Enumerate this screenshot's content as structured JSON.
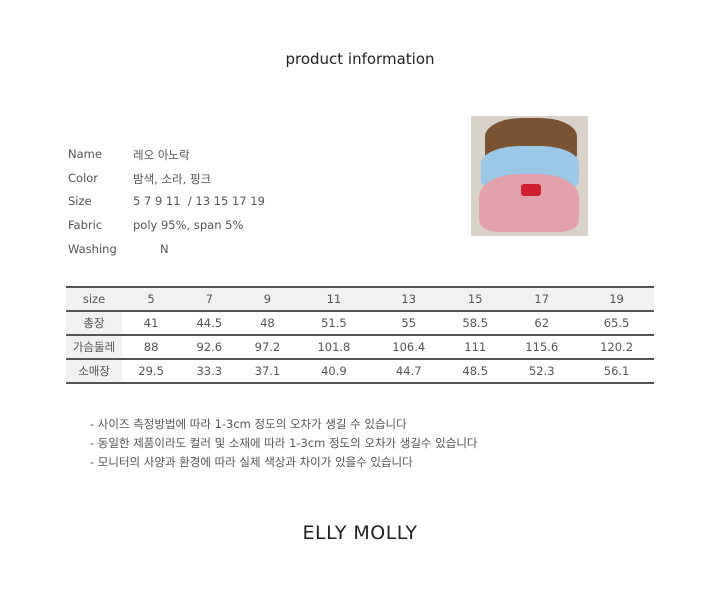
{
  "title": "product information",
  "info": [
    {
      "label": "Name",
      "value": "레오 아노락"
    },
    {
      "label": "Color",
      "value": "밤색, 소라, 핑크"
    },
    {
      "label": "Size",
      "value": "5 7 9 11  / 13 15 17 19"
    },
    {
      "label": "Fabric",
      "value": "poly 95%, span 5%"
    },
    {
      "label": "Washing",
      "value": "N"
    }
  ],
  "table": {
    "header": [
      "size",
      "5",
      "7",
      "9",
      "11",
      "13",
      "15",
      "17",
      "19"
    ],
    "rows": [
      [
        "총장",
        "41",
        "44.5",
        "48",
        "51.5",
        "55",
        "58.5",
        "62",
        "65.5"
      ],
      [
        "가슴둘레",
        "88",
        "92.6",
        "97.2",
        "101.8",
        "106.4",
        "111",
        "115.6",
        "120.2"
      ],
      [
        "소매장",
        "29.5",
        "33.3",
        "37.1",
        "40.9",
        "44.7",
        "48.5",
        "52.3",
        "56.1"
      ]
    ]
  },
  "notes": [
    "- 사이즈 측정방법에 따라 1-3cm 정도의 오차가 생길 수 있습니다",
    "- 동일한 제품이라도 컬러 및 소재에 따라 1-3cm 정도의 오차가 생길수 있습니다",
    "- 모니터의 사양과 환경에 따라 실제 색상과 차이가 있을수 있습니다"
  ],
  "brand": "ELLY MOLLY"
}
